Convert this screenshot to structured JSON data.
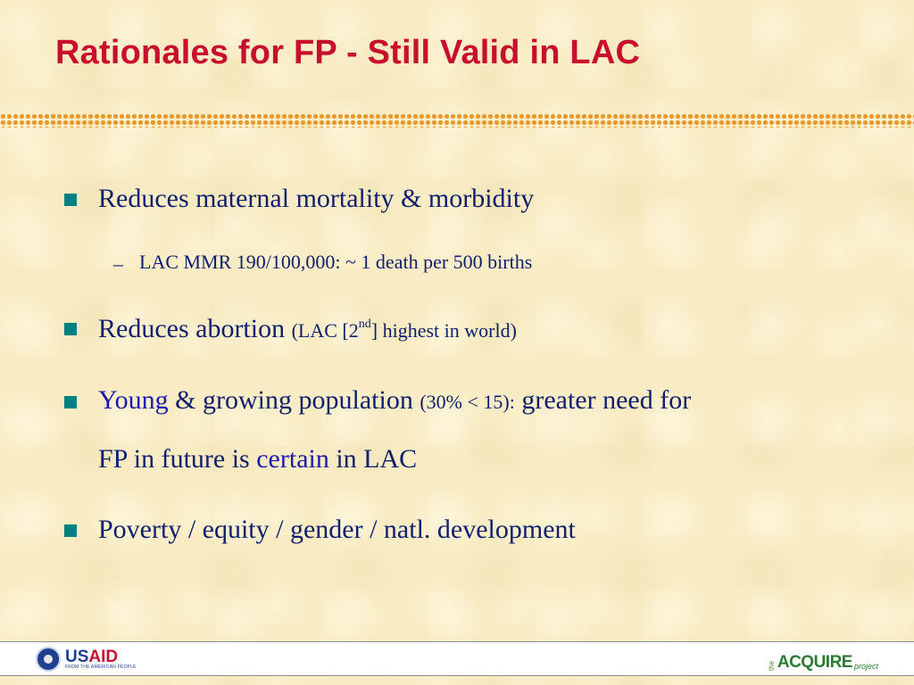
{
  "slide": {
    "title": "Rationales for FP - Still Valid in LAC",
    "bullets": {
      "b1": "Reduces maternal mortality & morbidity",
      "b1_sub": "LAC MMR 190/100,000: ~ 1 death per 500 births",
      "b2_main": "Reduces abortion",
      "b2_paren_open": "(LAC [2",
      "b2_sup": "nd",
      "b2_paren_close": "] highest in world)",
      "b3_young": "Young",
      "b3_text": "& growing population",
      "b3_paren": "(30% < 15):",
      "b3_tail": "greater need for",
      "b3_line2_a": "FP in future is",
      "b3_certain": "certain",
      "b3_line2_b": "in LAC",
      "b4": "Poverty / equity / gender / natl. development"
    },
    "sub_dash": "–"
  },
  "footer": {
    "usaid_word_us": "US",
    "usaid_word_aid": "AID",
    "usaid_tagline": "FROM THE AMERICAN PEOPLE",
    "acquire_the": "the",
    "acquire_main": "ACQUIRE",
    "acquire_project": "project"
  },
  "colors": {
    "title": "#c8102e",
    "body_text": "#10206e",
    "highlight": "#1a1ab0",
    "bullet": "#008080",
    "dots": "#e89a2e",
    "background": "#f9ecc4"
  }
}
